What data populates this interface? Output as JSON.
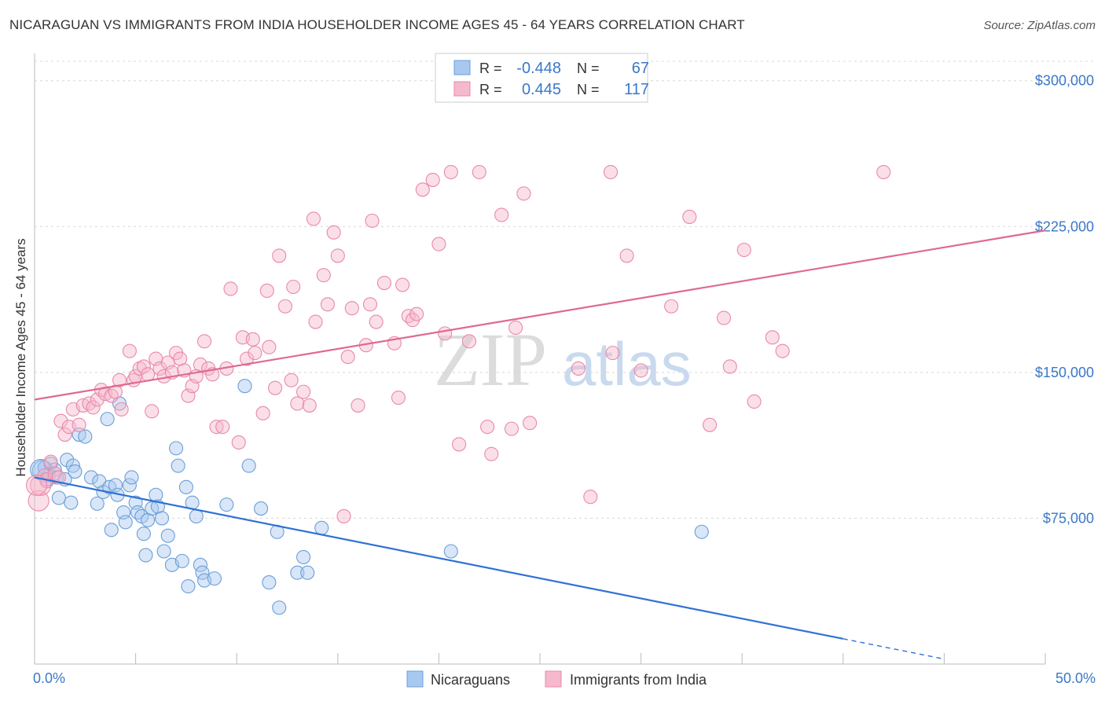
{
  "title": "NICARAGUAN VS IMMIGRANTS FROM INDIA HOUSEHOLDER INCOME AGES 45 - 64 YEARS CORRELATION CHART",
  "source": "Source: ZipAtlas.com",
  "watermark": {
    "zip": "ZIP",
    "atlas": "atlas"
  },
  "legend": {
    "rows": [
      {
        "r_label": "R =",
        "r_value": "-0.448",
        "n_label": "N =",
        "n_value": "67",
        "color": "#a8c8f0",
        "stroke": "#6a9fd8"
      },
      {
        "r_label": "R =",
        "r_value": "0.445",
        "n_label": "N =",
        "n_value": "117",
        "color": "#f6b8cd",
        "stroke": "#e889a9"
      }
    ]
  },
  "bottom_legend": [
    {
      "label": "Nicaraguans",
      "color": "#a8c8f0",
      "stroke": "#6a9fd8"
    },
    {
      "label": "Immigrants from India",
      "color": "#f6b8cd",
      "stroke": "#e889a9"
    }
  ],
  "chart_data": {
    "type": "scatter",
    "title": "NICARAGUAN VS IMMIGRANTS FROM INDIA HOUSEHOLDER INCOME AGES 45 - 64 YEARS CORRELATION CHART",
    "xlabel": "",
    "ylabel": "Householder Income Ages 45 - 64 years",
    "xlim": [
      0,
      50
    ],
    "ylim": [
      0,
      310000
    ],
    "x_tick_labels": [
      {
        "value": 0,
        "label": "0.0%"
      },
      {
        "value": 50,
        "label": "50.0%"
      }
    ],
    "y_ticks": [
      {
        "value": 75000,
        "label": "$75,000"
      },
      {
        "value": 150000,
        "label": "$150,000"
      },
      {
        "value": 225000,
        "label": "$225,000"
      },
      {
        "value": 300000,
        "label": "$300,000"
      }
    ],
    "series": [
      {
        "name": "Nicaraguans",
        "color": "#6a9fd8",
        "fill": "#a8c8f0",
        "trend": {
          "x0": 0,
          "y0": 96000,
          "x1": 40,
          "y1": 13000,
          "dash_to_x": 45,
          "dash_to_y": 2600
        },
        "points": [
          [
            0.4,
            99500
          ],
          [
            0.5,
            101000
          ],
          [
            0.6,
            94000
          ],
          [
            0.7,
            97000
          ],
          [
            0.8,
            103000
          ],
          [
            1.0,
            100000
          ],
          [
            1.1,
            96000
          ],
          [
            1.2,
            85500
          ],
          [
            1.5,
            95000
          ],
          [
            1.6,
            105000
          ],
          [
            1.8,
            83000
          ],
          [
            1.9,
            102000
          ],
          [
            2.0,
            99000
          ],
          [
            2.2,
            118000
          ],
          [
            2.5,
            117000
          ],
          [
            2.8,
            96000
          ],
          [
            3.1,
            82500
          ],
          [
            3.2,
            94000
          ],
          [
            3.4,
            88500
          ],
          [
            3.6,
            126000
          ],
          [
            3.7,
            91000
          ],
          [
            3.8,
            69000
          ],
          [
            4.0,
            92000
          ],
          [
            4.1,
            87000
          ],
          [
            4.2,
            134000
          ],
          [
            4.4,
            78000
          ],
          [
            4.5,
            73000
          ],
          [
            4.7,
            92000
          ],
          [
            4.8,
            96000
          ],
          [
            5.0,
            83000
          ],
          [
            5.1,
            78000
          ],
          [
            5.3,
            76000
          ],
          [
            5.4,
            67000
          ],
          [
            5.5,
            56000
          ],
          [
            5.6,
            74000
          ],
          [
            5.8,
            80000
          ],
          [
            6.0,
            87000
          ],
          [
            6.1,
            81000
          ],
          [
            6.3,
            75000
          ],
          [
            6.4,
            58000
          ],
          [
            6.6,
            66000
          ],
          [
            6.8,
            51000
          ],
          [
            7.0,
            111000
          ],
          [
            7.1,
            102000
          ],
          [
            7.3,
            53000
          ],
          [
            7.5,
            91000
          ],
          [
            7.6,
            40000
          ],
          [
            7.8,
            83000
          ],
          [
            8.0,
            76000
          ],
          [
            8.2,
            51000
          ],
          [
            8.3,
            47000
          ],
          [
            8.4,
            43000
          ],
          [
            8.9,
            44000
          ],
          [
            9.5,
            82000
          ],
          [
            10.4,
            143000
          ],
          [
            10.6,
            102000
          ],
          [
            11.2,
            80000
          ],
          [
            11.6,
            42000
          ],
          [
            12.0,
            68000
          ],
          [
            12.1,
            29000
          ],
          [
            13.0,
            47000
          ],
          [
            13.3,
            55000
          ],
          [
            13.5,
            47000
          ],
          [
            14.2,
            70000
          ],
          [
            20.6,
            58000
          ],
          [
            33.0,
            68000
          ],
          [
            0.3,
            100000
          ]
        ]
      },
      {
        "name": "Immigrants from India",
        "color": "#e889a9",
        "fill": "#f6b8cd",
        "trend": {
          "x0": 0,
          "y0": 136000,
          "x1": 50,
          "y1": 223000
        },
        "points": [
          [
            0.2,
            84000
          ],
          [
            0.3,
            92000
          ],
          [
            0.5,
            97000
          ],
          [
            0.6,
            95000
          ],
          [
            0.8,
            104000
          ],
          [
            1.0,
            98000
          ],
          [
            1.2,
            96000
          ],
          [
            1.3,
            125000
          ],
          [
            1.5,
            118000
          ],
          [
            1.7,
            122000
          ],
          [
            1.9,
            131000
          ],
          [
            2.2,
            123000
          ],
          [
            2.4,
            133000
          ],
          [
            2.7,
            134000
          ],
          [
            2.9,
            132000
          ],
          [
            3.1,
            136000
          ],
          [
            3.3,
            141000
          ],
          [
            3.5,
            139000
          ],
          [
            3.8,
            138000
          ],
          [
            4.0,
            140000
          ],
          [
            4.2,
            146000
          ],
          [
            4.3,
            131000
          ],
          [
            4.7,
            161000
          ],
          [
            4.9,
            146000
          ],
          [
            5.0,
            148000
          ],
          [
            5.2,
            152000
          ],
          [
            5.4,
            153000
          ],
          [
            5.6,
            149000
          ],
          [
            5.8,
            130000
          ],
          [
            6.0,
            157000
          ],
          [
            6.2,
            152000
          ],
          [
            6.4,
            148000
          ],
          [
            6.6,
            155000
          ],
          [
            6.8,
            150000
          ],
          [
            7.0,
            160000
          ],
          [
            7.2,
            157000
          ],
          [
            7.4,
            151000
          ],
          [
            7.6,
            138000
          ],
          [
            7.8,
            143000
          ],
          [
            8.0,
            148000
          ],
          [
            8.2,
            154000
          ],
          [
            8.4,
            166000
          ],
          [
            8.6,
            152000
          ],
          [
            8.8,
            149000
          ],
          [
            9.0,
            122000
          ],
          [
            9.3,
            122000
          ],
          [
            9.7,
            193000
          ],
          [
            9.5,
            152000
          ],
          [
            10.1,
            114000
          ],
          [
            10.3,
            168000
          ],
          [
            10.5,
            157000
          ],
          [
            10.8,
            167000
          ],
          [
            10.9,
            160000
          ],
          [
            11.3,
            129000
          ],
          [
            11.5,
            192000
          ],
          [
            11.6,
            163000
          ],
          [
            11.9,
            142000
          ],
          [
            12.1,
            210000
          ],
          [
            12.4,
            184000
          ],
          [
            12.7,
            146000
          ],
          [
            12.8,
            194000
          ],
          [
            13.0,
            134000
          ],
          [
            13.3,
            140000
          ],
          [
            13.6,
            133000
          ],
          [
            13.8,
            229000
          ],
          [
            13.9,
            176000
          ],
          [
            14.3,
            200000
          ],
          [
            14.5,
            185000
          ],
          [
            14.8,
            222000
          ],
          [
            15.0,
            210000
          ],
          [
            15.3,
            76000
          ],
          [
            15.5,
            158000
          ],
          [
            15.7,
            183000
          ],
          [
            16.0,
            133000
          ],
          [
            16.4,
            164000
          ],
          [
            16.6,
            185000
          ],
          [
            16.7,
            228000
          ],
          [
            16.9,
            176000
          ],
          [
            17.3,
            196000
          ],
          [
            17.8,
            165000
          ],
          [
            18.0,
            137000
          ],
          [
            18.2,
            195000
          ],
          [
            18.5,
            179000
          ],
          [
            18.7,
            177000
          ],
          [
            18.9,
            180000
          ],
          [
            19.2,
            244000
          ],
          [
            19.7,
            249000
          ],
          [
            20.0,
            216000
          ],
          [
            20.3,
            170000
          ],
          [
            20.6,
            253000
          ],
          [
            21.0,
            113000
          ],
          [
            21.5,
            166000
          ],
          [
            22.0,
            253000
          ],
          [
            22.4,
            122000
          ],
          [
            22.6,
            108000
          ],
          [
            23.1,
            231000
          ],
          [
            23.6,
            121000
          ],
          [
            23.8,
            173000
          ],
          [
            24.2,
            242000
          ],
          [
            24.5,
            124000
          ],
          [
            26.9,
            152000
          ],
          [
            27.5,
            86000
          ],
          [
            28.5,
            253000
          ],
          [
            28.6,
            160000
          ],
          [
            29.3,
            210000
          ],
          [
            30.0,
            151000
          ],
          [
            31.5,
            184000
          ],
          [
            32.4,
            230000
          ],
          [
            33.4,
            123000
          ],
          [
            34.1,
            178000
          ],
          [
            34.4,
            153000
          ],
          [
            35.1,
            213000
          ],
          [
            35.6,
            135000
          ],
          [
            36.5,
            168000
          ],
          [
            37.0,
            161000
          ],
          [
            42.0,
            253000
          ],
          [
            0.1,
            92000
          ]
        ]
      }
    ]
  }
}
